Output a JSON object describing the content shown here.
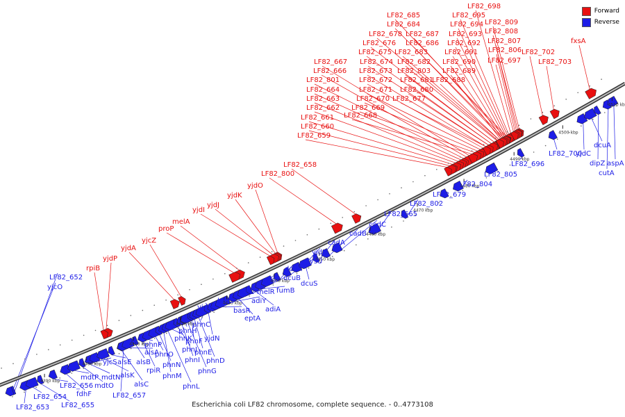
{
  "caption": "Escherichia coli LF82 chromosome, complete sequence. - 0..4773108",
  "colors": {
    "forward": "#e81010",
    "reverse": "#1d1de6",
    "backbone": "#777777"
  },
  "legend": [
    {
      "key": "forward",
      "label": "Forward"
    },
    {
      "key": "reverse",
      "label": "Reverse"
    }
  ],
  "ticks": [
    "4390 kbp",
    "4400 kbp",
    "4410 kbp",
    "4420 kbp",
    "4430 kbp",
    "4440 kbp",
    "4450 kbp",
    "4460 kbp",
    "4470 kbp",
    "4480 kbp",
    "4490 kbp",
    "4500 kbp",
    "4510 kbp"
  ],
  "genes_forward": [
    "LF82_698",
    "LF82_685",
    "LF82_695",
    "LF82_809",
    "LF82_684",
    "LF82_694",
    "LF82_808",
    "LF82_678",
    "LF82_687",
    "LF82_693",
    "LF82_807",
    "LF82_676",
    "LF82_686",
    "LF82_692",
    "fxsA",
    "LF82_806",
    "LF82_675",
    "LF82_683",
    "LF82_691",
    "LF82_702",
    "LF82_667",
    "LF82_674",
    "LF82_682",
    "LF82_690",
    "LF82_697",
    "LF82_703",
    "LF82_666",
    "LF82_673",
    "LF82_803",
    "LF82_689",
    "LF82_801",
    "LF82_672",
    "LF82_681",
    "LF82_688",
    "LF82_664",
    "LF82_671",
    "LF82_680",
    "LF82_663",
    "LF82_670",
    "LF82_677",
    "LF82_662",
    "LF82_669",
    "LF82_661",
    "LF82_668",
    "LF82_660",
    "LF82_659",
    "LF82_658",
    "LF82_800",
    "yjdO",
    "yjdK",
    "yjdJ",
    "yjdI",
    "melA",
    "proP",
    "yjcZ",
    "yjdA",
    "yjdP",
    "rpiB"
  ],
  "genes_reverse": [
    "LF82_652",
    "yjcO",
    "LF82_653",
    "LF82_654",
    "LF82_655",
    "LF82_656",
    "fdhF",
    "mdtP",
    "mdtO",
    "mdtN",
    "yjcS",
    "alsK",
    "alsE",
    "alsC",
    "LF82_657",
    "alsA",
    "alsB",
    "rpiR",
    "phnP",
    "phnO",
    "phnN",
    "phnM",
    "phnL",
    "phnK",
    "phnJ",
    "phnI",
    "phnH",
    "phnG",
    "phnF",
    "phnE",
    "phnD",
    "phnC",
    "yjdN",
    "yjdM",
    "basS",
    "basR",
    "adiC",
    "adiY",
    "eptA",
    "melR",
    "yjdF",
    "adiA",
    "fumB",
    "dcuB",
    "dcuR",
    "lysU",
    "yjdL",
    "dcuS",
    "cadA",
    "cadB",
    "cadC",
    "LF82_665",
    "LF82_802",
    "LF82_679",
    "LF82_804",
    "LF82_805",
    "LF82_696",
    "LF82_700",
    "yjdC",
    "dcuA",
    "dipZ",
    "cutA",
    "aspA"
  ]
}
